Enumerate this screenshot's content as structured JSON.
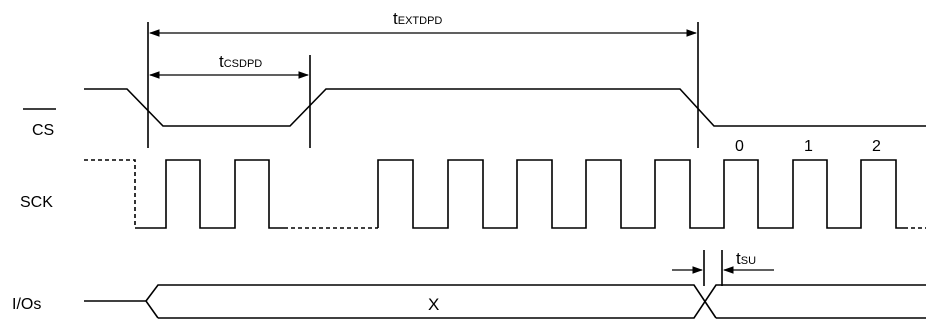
{
  "signals": {
    "cs": "CS",
    "sck": "SCK",
    "ios": "I/Os"
  },
  "timings": {
    "t_extdpd": {
      "base": "t",
      "sub": "EXTDPD"
    },
    "t_csdpd": {
      "base": "t",
      "sub": "CSDPD"
    },
    "t_su": {
      "base": "t",
      "sub": "SU"
    }
  },
  "clock_numbers": [
    "0",
    "1",
    "2"
  ],
  "bus_value": "X"
}
